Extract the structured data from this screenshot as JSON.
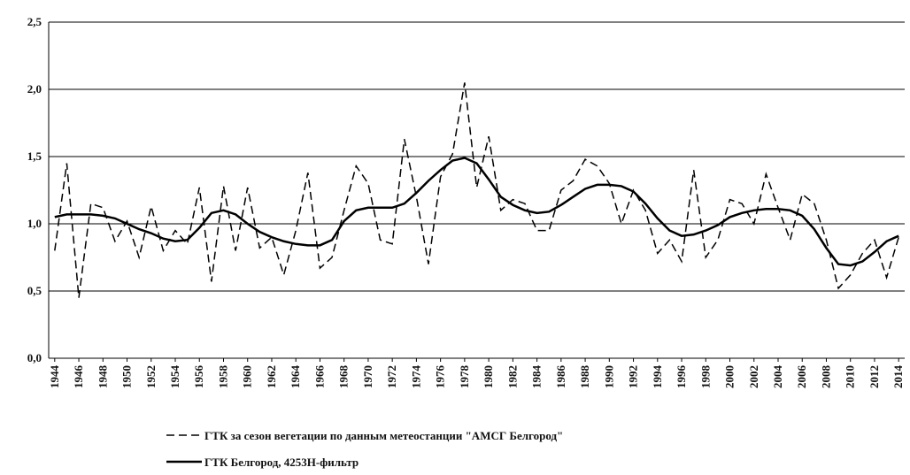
{
  "chart_data": {
    "type": "line",
    "x": [
      1944,
      1945,
      1946,
      1947,
      1948,
      1949,
      1950,
      1951,
      1952,
      1953,
      1954,
      1955,
      1956,
      1957,
      1958,
      1959,
      1960,
      1961,
      1962,
      1963,
      1964,
      1965,
      1966,
      1967,
      1968,
      1969,
      1970,
      1971,
      1972,
      1973,
      1974,
      1975,
      1976,
      1977,
      1978,
      1979,
      1980,
      1981,
      1982,
      1983,
      1984,
      1985,
      1986,
      1987,
      1988,
      1989,
      1990,
      1991,
      1992,
      1993,
      1994,
      1995,
      1996,
      1997,
      1998,
      1999,
      2000,
      2001,
      2002,
      2003,
      2004,
      2005,
      2006,
      2007,
      2008,
      2009,
      2010,
      2011,
      2012,
      2013,
      2014
    ],
    "series": [
      {
        "name": "ГТК за сезон вегетации по данным метеостанции \"АМСГ Белгород\"",
        "color": "#000000",
        "line_style": "dashed",
        "values": [
          0.8,
          1.45,
          0.45,
          1.15,
          1.12,
          0.87,
          1.02,
          0.75,
          1.13,
          0.8,
          0.95,
          0.85,
          1.27,
          0.57,
          1.28,
          0.8,
          1.27,
          0.82,
          0.9,
          0.62,
          0.95,
          1.38,
          0.67,
          0.75,
          1.1,
          1.43,
          1.3,
          0.88,
          0.85,
          1.63,
          1.2,
          0.7,
          1.35,
          1.52,
          2.05,
          1.27,
          1.65,
          1.1,
          1.18,
          1.15,
          0.95,
          0.95,
          1.25,
          1.32,
          1.48,
          1.43,
          1.3,
          1.0,
          1.25,
          1.1,
          0.78,
          0.88,
          0.72,
          1.4,
          0.75,
          0.88,
          1.18,
          1.15,
          1.0,
          1.37,
          1.12,
          0.88,
          1.22,
          1.15,
          0.88,
          0.52,
          0.62,
          0.78,
          0.88,
          0.6,
          0.9
        ]
      },
      {
        "name": "ГТК Белгород, 4253Н-фильтр",
        "color": "#000000",
        "line_style": "solid",
        "values": [
          1.05,
          1.07,
          1.07,
          1.07,
          1.06,
          1.04,
          1.0,
          0.96,
          0.93,
          0.89,
          0.87,
          0.88,
          0.97,
          1.08,
          1.1,
          1.07,
          1.0,
          0.94,
          0.9,
          0.87,
          0.85,
          0.84,
          0.84,
          0.88,
          1.02,
          1.1,
          1.12,
          1.12,
          1.12,
          1.15,
          1.23,
          1.32,
          1.4,
          1.47,
          1.49,
          1.45,
          1.33,
          1.2,
          1.14,
          1.1,
          1.08,
          1.09,
          1.14,
          1.2,
          1.26,
          1.29,
          1.29,
          1.28,
          1.24,
          1.15,
          1.04,
          0.95,
          0.91,
          0.92,
          0.95,
          0.99,
          1.05,
          1.08,
          1.1,
          1.11,
          1.11,
          1.1,
          1.06,
          0.96,
          0.82,
          0.7,
          0.69,
          0.72,
          0.79,
          0.87,
          0.91
        ]
      }
    ],
    "xlim": [
      1943.5,
      2014.5
    ],
    "xticks": [
      1944,
      1946,
      1948,
      1950,
      1952,
      1954,
      1956,
      1958,
      1960,
      1962,
      1964,
      1966,
      1968,
      1970,
      1972,
      1974,
      1976,
      1978,
      1980,
      1982,
      1984,
      1986,
      1988,
      1990,
      1992,
      1994,
      1996,
      1998,
      2000,
      2002,
      2004,
      2006,
      2008,
      2010,
      2012,
      2014
    ],
    "ylim": [
      0,
      2.5
    ],
    "yticks": [
      {
        "value": 0,
        "label": "0,0"
      },
      {
        "value": 0.5,
        "label": "0,5"
      },
      {
        "value": 1,
        "label": "1,0"
      },
      {
        "value": 1.5,
        "label": "1,5"
      },
      {
        "value": 2,
        "label": "2,0"
      },
      {
        "value": 2.5,
        "label": "2,5"
      }
    ],
    "grid": true,
    "legend": "bottom"
  }
}
